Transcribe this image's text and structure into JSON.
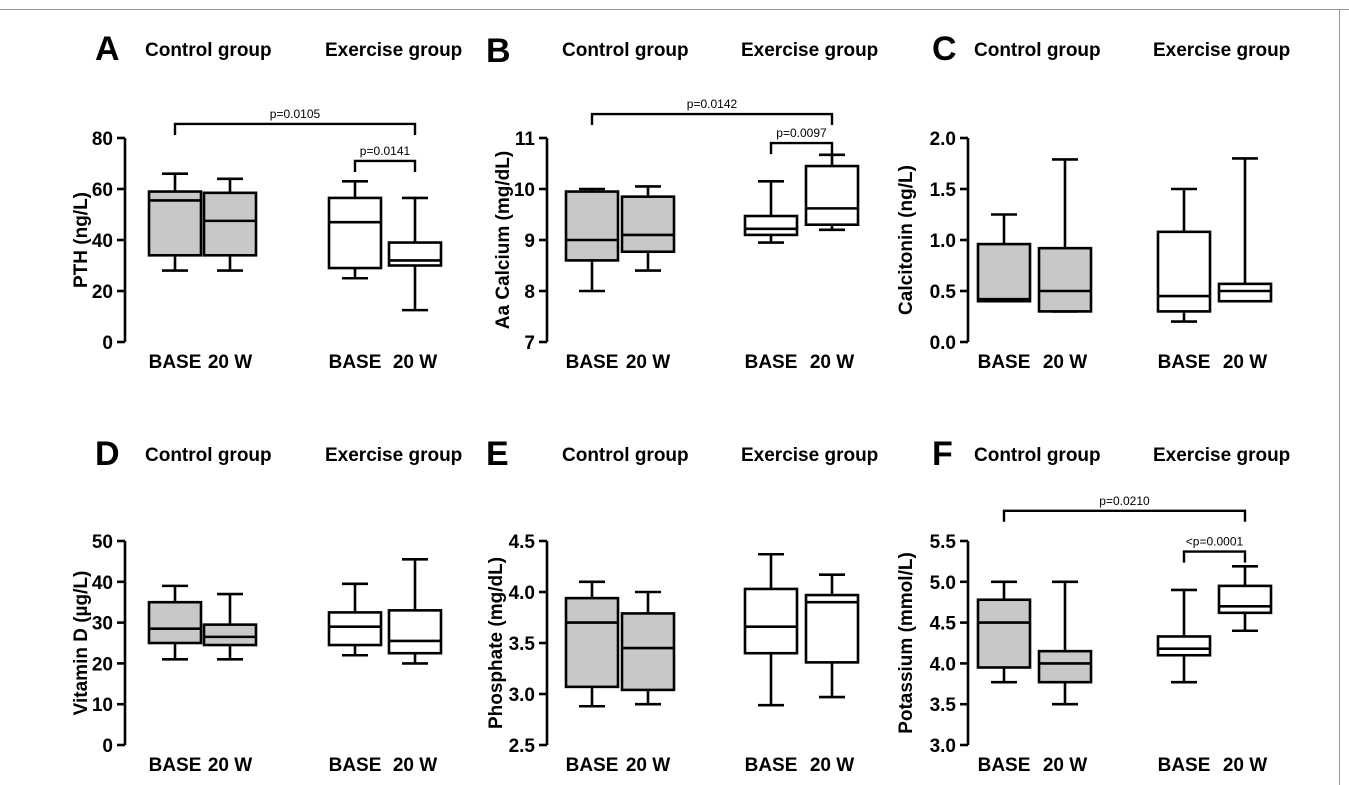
{
  "chart_data": [
    {
      "type": "box",
      "panel": "A",
      "group_labels": [
        "Control group",
        "Exercise group"
      ],
      "categories": [
        "BASE",
        "20 W",
        "BASE",
        "20 W"
      ],
      "ylabel": "PTH (ng/L)",
      "ylim": [
        0,
        80
      ],
      "yticks": [
        0,
        20,
        40,
        60,
        80
      ],
      "boxes": [
        {
          "group": "Control group",
          "category": "BASE",
          "min": 28,
          "q1": 34,
          "median": 55.5,
          "q3": 59,
          "max": 66,
          "fill": "#c8c8c8"
        },
        {
          "group": "Control group",
          "category": "20 W",
          "min": 28,
          "q1": 34,
          "median": 47.5,
          "q3": 58.5,
          "max": 64,
          "fill": "#c8c8c8"
        },
        {
          "group": "Exercise group",
          "category": "BASE",
          "min": 25,
          "q1": 29,
          "median": 47,
          "q3": 56.5,
          "max": 63,
          "fill": "#ffffff"
        },
        {
          "group": "Exercise group",
          "category": "20 W",
          "min": 12.5,
          "q1": 30,
          "median": 32,
          "q3": 39,
          "max": 56.5,
          "fill": "#ffffff"
        }
      ],
      "brackets": [
        {
          "from": 0,
          "to": 3,
          "y": 85.5,
          "label": "p=0.0105"
        },
        {
          "from": 2,
          "to": 3,
          "y": 71,
          "label": "p=0.0141"
        }
      ]
    },
    {
      "type": "box",
      "panel": "B",
      "group_labels": [
        "Control group",
        "Exercise group"
      ],
      "categories": [
        "BASE",
        "20 W",
        "BASE",
        "20 W"
      ],
      "ylabel": "Aa Calcium (mg/dL)",
      "ylim": [
        7,
        11
      ],
      "yticks": [
        7,
        8,
        9,
        10,
        11
      ],
      "boxes": [
        {
          "group": "Control group",
          "category": "BASE",
          "min": 8.0,
          "q1": 8.6,
          "median": 9.0,
          "q3": 9.95,
          "max": 10.0,
          "fill": "#c8c8c8"
        },
        {
          "group": "Control group",
          "category": "20 W",
          "min": 8.4,
          "q1": 8.77,
          "median": 9.1,
          "q3": 9.85,
          "max": 10.05,
          "fill": "#c8c8c8"
        },
        {
          "group": "Exercise group",
          "category": "BASE",
          "min": 8.95,
          "q1": 9.1,
          "median": 9.22,
          "q3": 9.47,
          "max": 10.15,
          "fill": "#ffffff"
        },
        {
          "group": "Exercise group",
          "category": "20 W",
          "min": 9.2,
          "q1": 9.3,
          "median": 9.62,
          "q3": 10.45,
          "max": 10.67,
          "fill": "#ffffff"
        }
      ],
      "brackets": [
        {
          "from": 0,
          "to": 3,
          "y": 11.47,
          "label": "p=0.0142"
        },
        {
          "from": 2,
          "to": 3,
          "y": 10.9,
          "label": "p=0.0097"
        }
      ]
    },
    {
      "type": "box",
      "panel": "C",
      "group_labels": [
        "Control group",
        "Exercise group"
      ],
      "categories": [
        "BASE",
        "20 W",
        "BASE",
        "20 W"
      ],
      "ylabel": "Calcitonin (ng/L)",
      "ylim": [
        0,
        2.0
      ],
      "yticks": [
        "0.0",
        "0.5",
        "1.0",
        "1.5",
        "2.0"
      ],
      "boxes": [
        {
          "group": "Control group",
          "category": "BASE",
          "min": 0.4,
          "q1": 0.4,
          "median": 0.42,
          "q3": 0.96,
          "max": 1.25,
          "fill": "#c8c8c8"
        },
        {
          "group": "Control group",
          "category": "20 W",
          "min": 0.3,
          "q1": 0.3,
          "median": 0.5,
          "q3": 0.92,
          "max": 1.79,
          "fill": "#c8c8c8"
        },
        {
          "group": "Exercise group",
          "category": "BASE",
          "min": 0.2,
          "q1": 0.3,
          "median": 0.45,
          "q3": 1.08,
          "max": 1.5,
          "fill": "#ffffff"
        },
        {
          "group": "Exercise group",
          "category": "20 W",
          "min": 0.4,
          "q1": 0.4,
          "median": 0.5,
          "q3": 0.57,
          "max": 1.8,
          "fill": "#ffffff"
        }
      ],
      "brackets": []
    },
    {
      "type": "box",
      "panel": "D",
      "group_labels": [
        "Control group",
        "Exercise group"
      ],
      "categories": [
        "BASE",
        "20 W",
        "BASE",
        "20 W"
      ],
      "ylabel": "Vitamin D (µg/L)",
      "ylim": [
        0,
        50
      ],
      "yticks": [
        0,
        10,
        20,
        30,
        40,
        50
      ],
      "boxes": [
        {
          "group": "Control group",
          "category": "BASE",
          "min": 21,
          "q1": 25,
          "median": 28.5,
          "q3": 35,
          "max": 39,
          "fill": "#c8c8c8"
        },
        {
          "group": "Control group",
          "category": "20 W",
          "min": 21,
          "q1": 24.5,
          "median": 26.5,
          "q3": 29.5,
          "max": 37,
          "fill": "#c8c8c8"
        },
        {
          "group": "Exercise group",
          "category": "BASE",
          "min": 22,
          "q1": 24.5,
          "median": 29,
          "q3": 32.5,
          "max": 39.5,
          "fill": "#ffffff"
        },
        {
          "group": "Exercise group",
          "category": "20 W",
          "min": 20,
          "q1": 22.5,
          "median": 25.5,
          "q3": 33,
          "max": 45.5,
          "fill": "#ffffff"
        }
      ],
      "brackets": []
    },
    {
      "type": "box",
      "panel": "E",
      "group_labels": [
        "Control group",
        "Exercise group"
      ],
      "categories": [
        "BASE",
        "20 W",
        "BASE",
        "20 W"
      ],
      "ylabel": "Phosphate (mg/dL)",
      "ylim": [
        2.5,
        4.5
      ],
      "yticks": [
        "2.5",
        "3.0",
        "3.5",
        "4.0",
        "4.5"
      ],
      "boxes": [
        {
          "group": "Control group",
          "category": "BASE",
          "min": 2.88,
          "q1": 3.07,
          "median": 3.7,
          "q3": 3.94,
          "max": 4.1,
          "fill": "#c8c8c8"
        },
        {
          "group": "Control group",
          "category": "20 W",
          "min": 2.9,
          "q1": 3.04,
          "median": 3.45,
          "q3": 3.79,
          "max": 4.0,
          "fill": "#c8c8c8"
        },
        {
          "group": "Exercise group",
          "category": "BASE",
          "min": 2.89,
          "q1": 3.4,
          "median": 3.66,
          "q3": 4.03,
          "max": 4.37,
          "fill": "#ffffff"
        },
        {
          "group": "Exercise group",
          "category": "20 W",
          "min": 2.97,
          "q1": 3.31,
          "median": 3.9,
          "q3": 3.97,
          "max": 4.17,
          "fill": "#ffffff"
        }
      ],
      "brackets": []
    },
    {
      "type": "box",
      "panel": "F",
      "group_labels": [
        "Control group",
        "Exercise group"
      ],
      "categories": [
        "BASE",
        "20 W",
        "BASE",
        "20 W"
      ],
      "ylabel": "Potassium (mmol/L)",
      "ylim": [
        3.0,
        5.5
      ],
      "yticks": [
        "3.0",
        "3.5",
        "4.0",
        "4.5",
        "5.0",
        "5.5"
      ],
      "boxes": [
        {
          "group": "Control group",
          "category": "BASE",
          "min": 3.77,
          "q1": 3.95,
          "median": 4.5,
          "q3": 4.78,
          "max": 5.0,
          "fill": "#c8c8c8"
        },
        {
          "group": "Control group",
          "category": "20 W",
          "min": 3.5,
          "q1": 3.77,
          "median": 4.0,
          "q3": 4.15,
          "max": 5.0,
          "fill": "#c8c8c8"
        },
        {
          "group": "Exercise group",
          "category": "BASE",
          "min": 3.77,
          "q1": 4.1,
          "median": 4.18,
          "q3": 4.33,
          "max": 4.9,
          "fill": "#ffffff"
        },
        {
          "group": "Exercise group",
          "category": "20 W",
          "min": 4.4,
          "q1": 4.62,
          "median": 4.7,
          "q3": 4.95,
          "max": 5.19,
          "fill": "#ffffff"
        }
      ],
      "brackets": [
        {
          "from": 0,
          "to": 3,
          "y": 5.87,
          "label": "p=0.0210"
        },
        {
          "from": 2,
          "to": 3,
          "y": 5.37,
          "label": "<p=0.0001"
        }
      ]
    }
  ]
}
